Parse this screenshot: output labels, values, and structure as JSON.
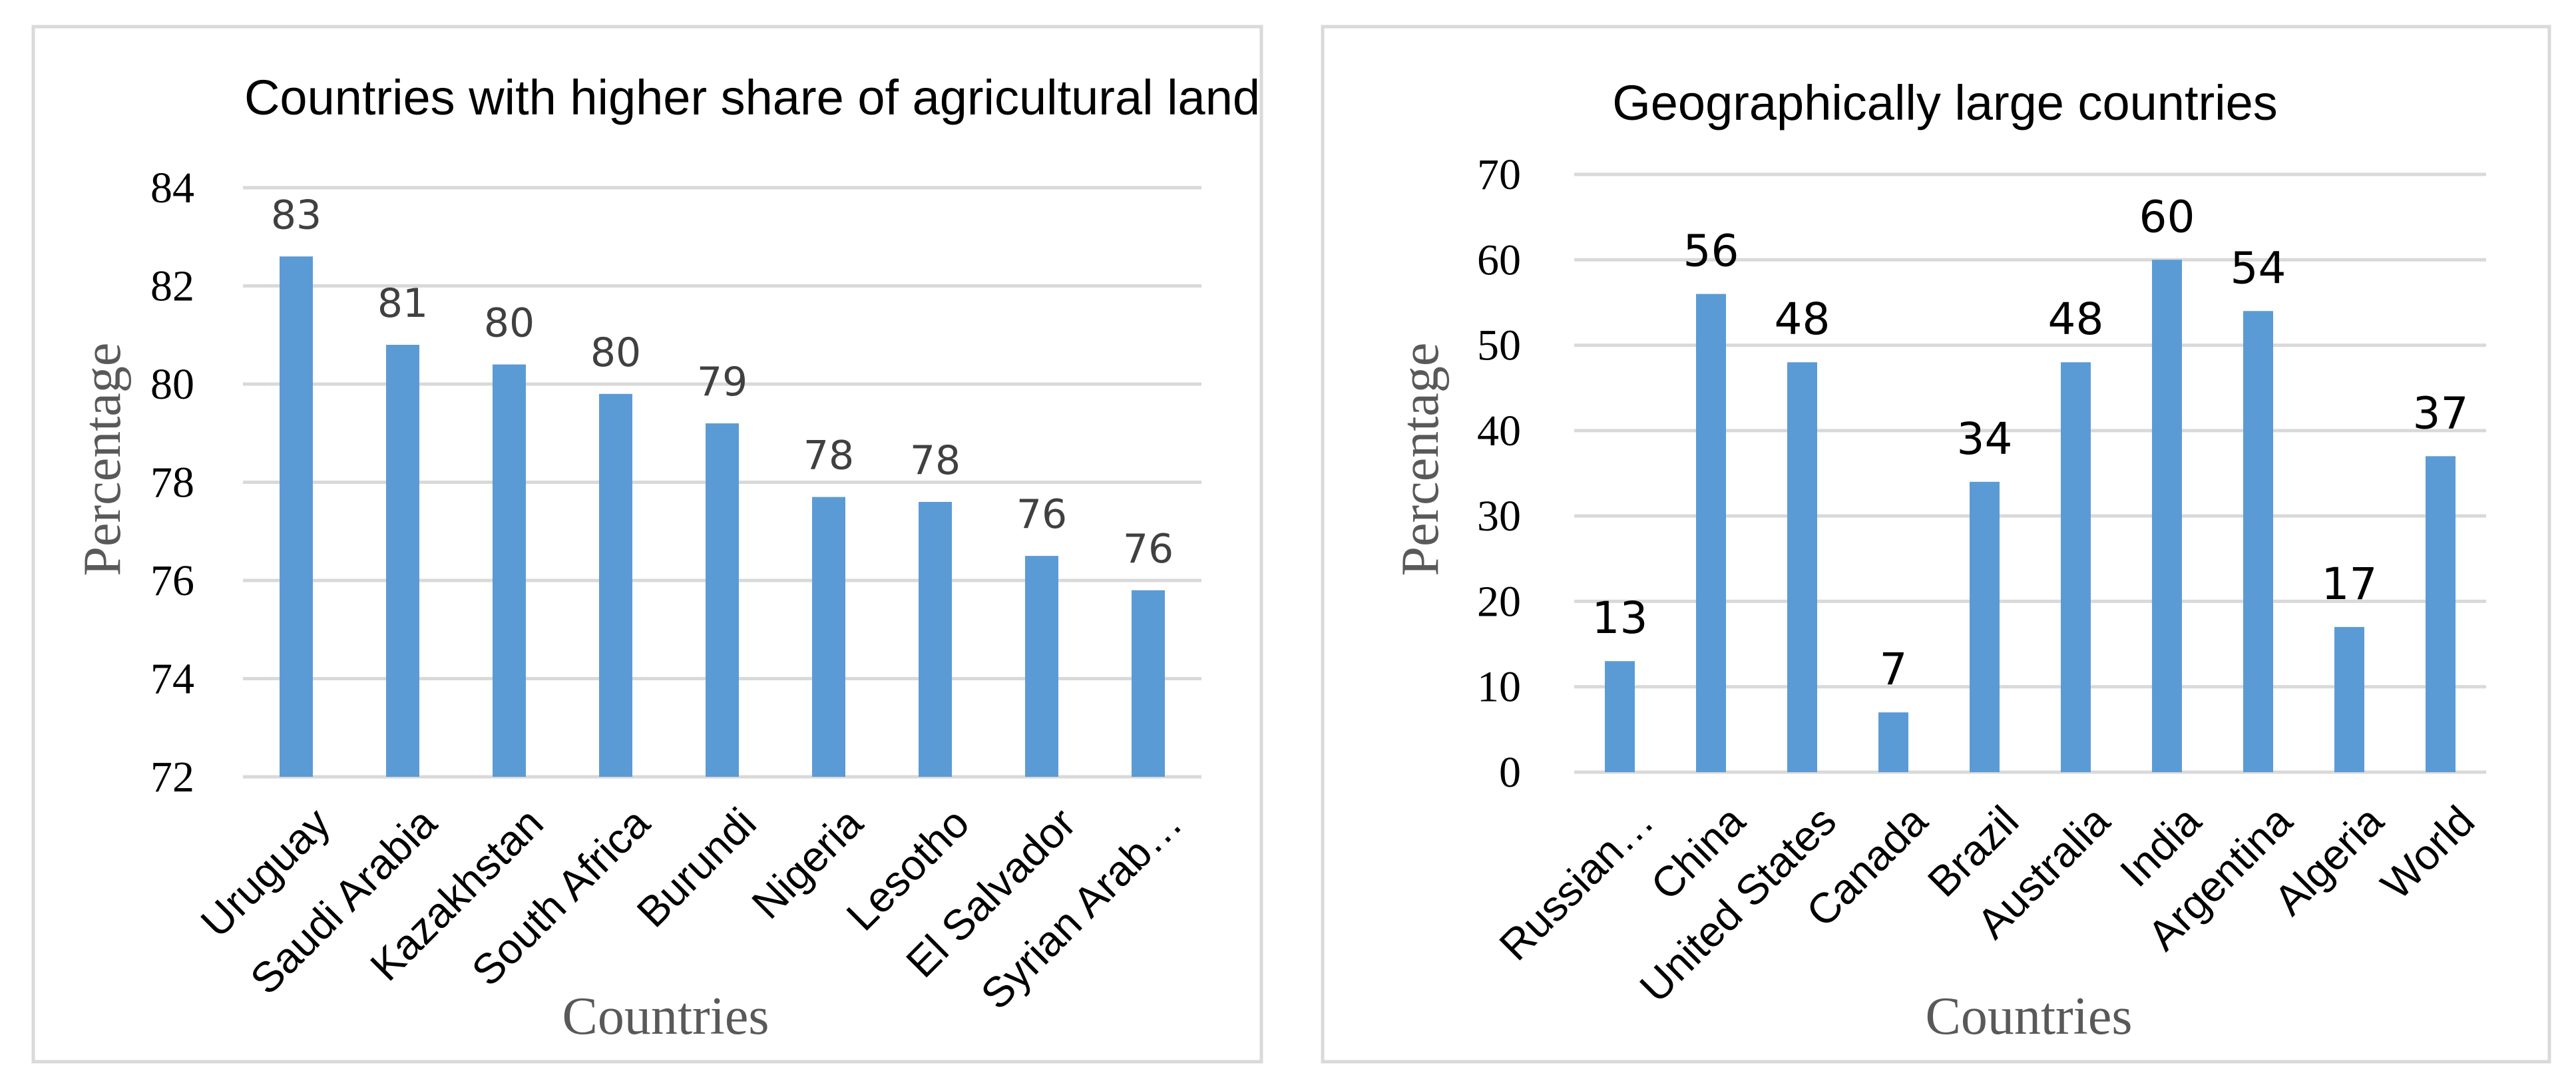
{
  "chart_data": [
    {
      "type": "bar",
      "title": "Countries with higher share of agricultural land",
      "xlabel": "Countries",
      "ylabel": "Percentage",
      "ylim": [
        72,
        84
      ],
      "yticks": [
        "72",
        "74",
        "76",
        "78",
        "80",
        "82",
        "84"
      ],
      "grid": true,
      "categories": [
        "Uruguay",
        "Saudi Arabia",
        "Kazakhstan",
        "South Africa",
        "Burundi",
        "Nigeria",
        "Lesotho",
        "El Salvador",
        "Syrian Arab…"
      ],
      "values": [
        82.6,
        80.8,
        80.4,
        79.8,
        79.2,
        77.7,
        77.6,
        76.5,
        75.8
      ],
      "data_labels": [
        "83",
        "81",
        "80",
        "80",
        "79",
        "78",
        "78",
        "76",
        "76"
      ],
      "bar_color": "#5b9bd5"
    },
    {
      "type": "bar",
      "title": "Geographically large countries",
      "xlabel": "Countries",
      "ylabel": "Percentage",
      "ylim": [
        0,
        70
      ],
      "yticks": [
        "0",
        "10",
        "20",
        "30",
        "40",
        "50",
        "60",
        "70"
      ],
      "grid": true,
      "categories": [
        "Russian…",
        "China",
        "United States",
        "Canada",
        "Brazil",
        "Australia",
        "India",
        "Argentina",
        "Algeria",
        "World"
      ],
      "values": [
        13,
        56,
        48,
        7,
        34,
        48,
        60,
        54,
        17,
        37
      ],
      "data_labels": [
        "13",
        "56",
        "48",
        "7",
        "34",
        "48",
        "60",
        "54",
        "17",
        "37"
      ],
      "bar_color": "#5b9bd5"
    }
  ]
}
